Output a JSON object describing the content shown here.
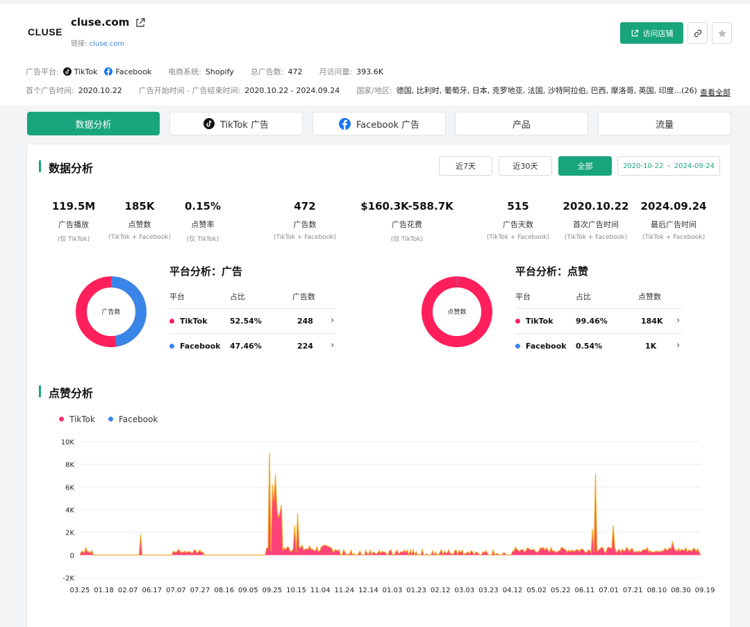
{
  "header": {
    "logo": "CLUSE",
    "shop_name": "cluse.com",
    "link_label": "链接:",
    "link_url": "cluse.com",
    "visit_button": "访问店铺",
    "platform_label": "广告平台:",
    "platforms": [
      "TikTok",
      "Facebook"
    ],
    "ecommerce_label": "电商系统:",
    "ecommerce_value": "Shopify",
    "total_ads_label": "总广告数:",
    "total_ads_value": "472",
    "monthly_visits_label": "月访问量:",
    "monthly_visits_value": "393.6K",
    "first_ad_label": "首个广告时间:",
    "first_ad_value": "2020.10.22",
    "ad_period_label": "广告开始时间 - 广告结束时间:",
    "ad_period_value": "2020.10.22 - 2024.09.24",
    "countries_label": "国家/地区:",
    "countries_value": "德国, 比利时, 葡萄牙, 日本, 克罗地亚, 法国, 沙特阿拉伯, 巴西, 摩洛哥, 英国, 印度...(26)",
    "see_all": "查看全部"
  },
  "tabs": [
    {
      "label": "数据分析",
      "active": true
    },
    {
      "label": "TikTok 广告",
      "icon": "tiktok-icon"
    },
    {
      "label": "Facebook 广告",
      "icon": "facebook-icon"
    },
    {
      "label": "产品"
    },
    {
      "label": "流量"
    }
  ],
  "analysis": {
    "title": "数据分析",
    "range_buttons": [
      "近7天",
      "近30天",
      "全部"
    ],
    "active_range": "全部",
    "date_from": "2020-10-22",
    "date_to": "2024-09-24",
    "stats": [
      {
        "value": "119.5M",
        "label": "广告播放",
        "sub": "(仅 TikTok)"
      },
      {
        "value": "185K",
        "label": "点赞数",
        "sub": "(TikTok + Facebook)"
      },
      {
        "value": "0.15%",
        "label": "点赞率",
        "sub": "(仅 TikTok)"
      },
      {
        "value": "472",
        "label": "广告数",
        "sub": "(TikTok + Facebook)"
      },
      {
        "value": "$160.3K-588.7K",
        "label": "广告花费",
        "sub": "(仅 TikTok)"
      },
      {
        "value": "515",
        "label": "广告天数",
        "sub": "(TikTok + Facebook)"
      },
      {
        "value": "2020.10.22",
        "label": "首次广告时间",
        "sub": "(TikTok + Facebook)"
      },
      {
        "value": "2024.09.24",
        "label": "最后广告时间",
        "sub": "(TikTok + Facebook)"
      }
    ]
  },
  "platform_ads": {
    "title": "平台分析：广告",
    "donut_label": "广告数",
    "headers": [
      "平台",
      "占比",
      "广告数"
    ],
    "rows": [
      {
        "platform": "TikTok",
        "share": "52.54%",
        "count": "248",
        "share_value": 52.54,
        "color": "#ff1f5a"
      },
      {
        "platform": "Facebook",
        "share": "47.46%",
        "count": "224",
        "share_value": 47.46,
        "color": "#3a86e8"
      }
    ]
  },
  "platform_likes": {
    "title": "平台分析：点赞",
    "donut_label": "点赞数",
    "headers": [
      "平台",
      "占比",
      "点赞数"
    ],
    "rows": [
      {
        "platform": "TikTok",
        "share": "99.46%",
        "count": "184K",
        "share_value": 99.46,
        "color": "#ff1f5a"
      },
      {
        "platform": "Facebook",
        "share": "0.54%",
        "count": "1K",
        "share_value": 0.54,
        "color": "#3a86e8"
      }
    ]
  },
  "likes_chart": {
    "title": "点赞分析"
  },
  "chart_data": {
    "type": "area",
    "series": [
      {
        "name": "TikTok",
        "color": "#ff2d6a"
      },
      {
        "name": "Facebook",
        "color": "#3a86e8"
      }
    ],
    "overlay_color": "#f5a623",
    "y_ticks": [
      "10K",
      "8K",
      "6K",
      "4K",
      "2K",
      "0",
      "-2K"
    ],
    "ylim": [
      -2000,
      10000
    ],
    "x_ticks": [
      "03.25",
      "01.18",
      "02.07",
      "06.17",
      "07.07",
      "07.27",
      "08.16",
      "09.05",
      "09.25",
      "10.15",
      "11.04",
      "11.24",
      "12.14",
      "01.03",
      "01.23",
      "02.12",
      "03.03",
      "03.23",
      "04.12",
      "05.02",
      "05.22",
      "06.11",
      "07.01",
      "07.21",
      "08.10",
      "08.30",
      "09.19"
    ],
    "grid": true,
    "legend": "top-left",
    "peaks": [
      {
        "x": 0.01,
        "y": 650
      },
      {
        "x": 0.098,
        "y": 1800
      },
      {
        "x": 0.16,
        "y": 500
      },
      {
        "x": 0.305,
        "y": 9000
      },
      {
        "x": 0.31,
        "y": 6200
      },
      {
        "x": 0.315,
        "y": 7100
      },
      {
        "x": 0.345,
        "y": 2600
      },
      {
        "x": 0.352,
        "y": 3700
      },
      {
        "x": 0.825,
        "y": 2300
      },
      {
        "x": 0.83,
        "y": 7200
      },
      {
        "x": 0.86,
        "y": 2600
      },
      {
        "x": 0.955,
        "y": 1200
      }
    ]
  }
}
